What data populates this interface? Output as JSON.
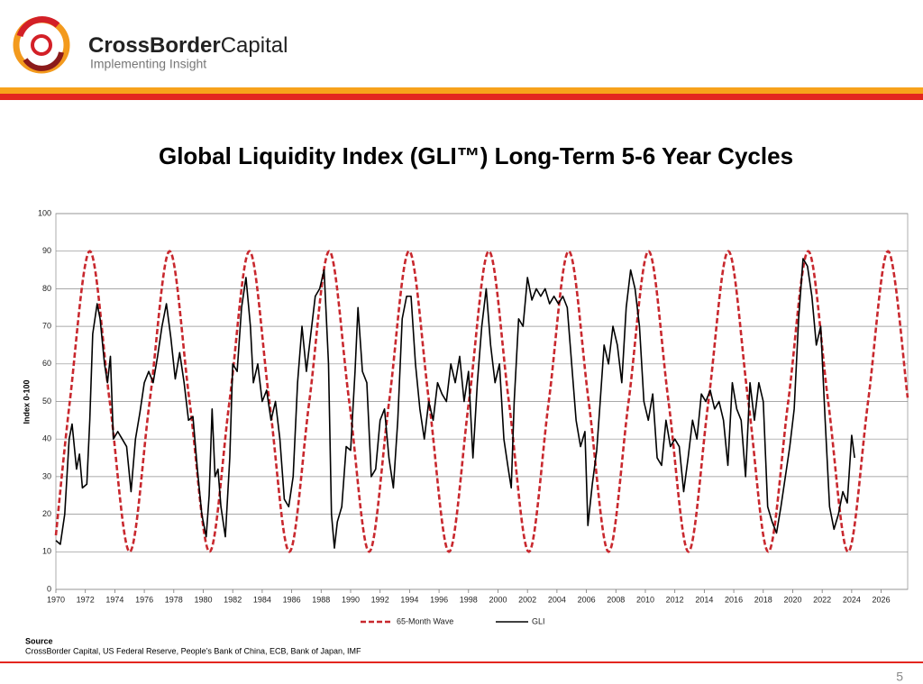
{
  "header": {
    "brand_bold": "CrossBorder",
    "brand_rest": "Capital",
    "tagline": "Implementing Insight"
  },
  "chart_data": {
    "type": "line",
    "title": "Global Liquidity Index (GLI™) Long-Term 5-6 Year Cycles",
    "ylabel": "Index 0-100",
    "xlim": [
      1970,
      2027.8
    ],
    "xticks": [
      1970,
      1972,
      1974,
      1976,
      1978,
      1980,
      1982,
      1984,
      1986,
      1988,
      1990,
      1992,
      1994,
      1996,
      1998,
      2000,
      2002,
      2004,
      2006,
      2008,
      2010,
      2012,
      2014,
      2016,
      2018,
      2020,
      2022,
      2024,
      2026
    ],
    "ylim": [
      0,
      100
    ],
    "yticks": [
      0,
      10,
      20,
      30,
      40,
      50,
      60,
      70,
      80,
      90,
      100
    ],
    "grid": true,
    "legend": "bottom",
    "series": [
      {
        "name": "65-Month Wave",
        "color": "#c8282e",
        "style": "dashed",
        "smooth": true,
        "x": [
          1970,
          1970.946,
          1972.3,
          1973.654,
          1975.008,
          1976.363,
          1977.717,
          1979.071,
          1980.425,
          1981.779,
          1983.133,
          1984.488,
          1985.842,
          1987.196,
          1988.55,
          1989.904,
          1991.258,
          1992.613,
          1993.967,
          1995.321,
          1996.675,
          1998.029,
          1999.383,
          2000.738,
          2002.092,
          2003.446,
          2004.8,
          2006.154,
          2007.508,
          2008.863,
          2010.217,
          2011.571,
          2012.925,
          2014.279,
          2015.633,
          2016.988,
          2018.342,
          2019.696,
          2021.05,
          2022.404,
          2023.758,
          2025.113,
          2026.467,
          2027.8
        ],
        "values": [
          14.4,
          50,
          90,
          50,
          10,
          50,
          90,
          50,
          10,
          50,
          90,
          50,
          10,
          50,
          90,
          50,
          10,
          50,
          90,
          50,
          10,
          50,
          90,
          50,
          10,
          50,
          90,
          50,
          10,
          50,
          90,
          50,
          10,
          50,
          90,
          50,
          10,
          50,
          90,
          50,
          10,
          50,
          90,
          51
        ]
      },
      {
        "name": "GLI",
        "color": "#000000",
        "style": "solid",
        "smooth": false,
        "x": [
          1970,
          1970.3,
          1970.6,
          1970.9,
          1971.1,
          1971.4,
          1971.6,
          1971.8,
          1972.1,
          1972.3,
          1972.5,
          1972.8,
          1973.0,
          1973.3,
          1973.5,
          1973.7,
          1973.9,
          1974.2,
          1974.5,
          1974.8,
          1975.1,
          1975.4,
          1975.7,
          1976.0,
          1976.3,
          1976.6,
          1976.9,
          1977.2,
          1977.5,
          1977.8,
          1978.1,
          1978.4,
          1978.7,
          1979.0,
          1979.3,
          1979.6,
          1979.9,
          1980.2,
          1980.4,
          1980.6,
          1980.8,
          1981.0,
          1981.2,
          1981.5,
          1981.8,
          1982.0,
          1982.3,
          1982.6,
          1982.9,
          1983.2,
          1983.4,
          1983.7,
          1984.0,
          1984.3,
          1984.6,
          1984.9,
          1985.2,
          1985.5,
          1985.8,
          1986.1,
          1986.4,
          1986.7,
          1987.0,
          1987.3,
          1987.6,
          1987.9,
          1988.2,
          1988.5,
          1988.7,
          1988.9,
          1989.1,
          1989.4,
          1989.7,
          1990.0,
          1990.3,
          1990.5,
          1990.8,
          1991.1,
          1991.4,
          1991.7,
          1992.0,
          1992.3,
          1992.6,
          1992.9,
          1993.2,
          1993.5,
          1993.8,
          1994.1,
          1994.4,
          1994.7,
          1995.0,
          1995.3,
          1995.6,
          1995.9,
          1996.2,
          1996.5,
          1996.8,
          1997.1,
          1997.4,
          1997.7,
          1998.0,
          1998.3,
          1998.6,
          1998.9,
          1999.2,
          1999.5,
          1999.8,
          2000.1,
          2000.4,
          2000.7,
          2000.9,
          2001.1,
          2001.4,
          2001.7,
          2002.0,
          2002.3,
          2002.6,
          2002.9,
          2003.2,
          2003.5,
          2003.8,
          2004.1,
          2004.4,
          2004.7,
          2005.0,
          2005.3,
          2005.6,
          2005.9,
          2006.1,
          2006.4,
          2006.7,
          2006.9,
          2007.2,
          2007.5,
          2007.8,
          2008.1,
          2008.4,
          2008.7,
          2009.0,
          2009.3,
          2009.6,
          2009.9,
          2010.2,
          2010.5,
          2010.8,
          2011.1,
          2011.4,
          2011.7,
          2012.0,
          2012.3,
          2012.6,
          2012.9,
          2013.2,
          2013.5,
          2013.8,
          2014.1,
          2014.4,
          2014.7,
          2015.0,
          2015.3,
          2015.6,
          2015.9,
          2016.2,
          2016.5,
          2016.8,
          2017.1,
          2017.4,
          2017.7,
          2018.0,
          2018.3,
          2018.6,
          2018.9,
          2019.2,
          2019.5,
          2019.8,
          2020.1,
          2020.4,
          2020.7,
          2021.0,
          2021.3,
          2021.6,
          2021.9,
          2022.2,
          2022.5,
          2022.8,
          2023.1,
          2023.4,
          2023.7,
          2024.0,
          2024.2
        ],
        "values": [
          13,
          12,
          20,
          40,
          44,
          32,
          36,
          27,
          28,
          45,
          68,
          76,
          72,
          60,
          55,
          62,
          40,
          42,
          40,
          38,
          26,
          40,
          47,
          55,
          58,
          55,
          62,
          70,
          76,
          67,
          56,
          63,
          55,
          45,
          46,
          32,
          20,
          14,
          25,
          48,
          30,
          32,
          22,
          14,
          35,
          60,
          58,
          75,
          83,
          70,
          55,
          60,
          50,
          53,
          45,
          50,
          40,
          24,
          22,
          30,
          55,
          70,
          58,
          68,
          78,
          80,
          85,
          60,
          20,
          11,
          18,
          22,
          38,
          37,
          58,
          75,
          58,
          55,
          30,
          32,
          45,
          48,
          35,
          27,
          45,
          72,
          78,
          78,
          60,
          48,
          40,
          50,
          45,
          55,
          52,
          50,
          60,
          55,
          62,
          50,
          58,
          35,
          55,
          70,
          80,
          65,
          55,
          60,
          40,
          32,
          27,
          50,
          72,
          70,
          83,
          77,
          80,
          78,
          80,
          76,
          78,
          76,
          78,
          75,
          60,
          45,
          38,
          42,
          17,
          28,
          37,
          48,
          65,
          60,
          70,
          65,
          55,
          75,
          85,
          80,
          70,
          50,
          45,
          52,
          35,
          33,
          45,
          38,
          40,
          38,
          26,
          35,
          45,
          40,
          52,
          50,
          53,
          48,
          50,
          45,
          33,
          55,
          48,
          45,
          30,
          55,
          45,
          55,
          50,
          22,
          18,
          15,
          22,
          30,
          38,
          48,
          72,
          88,
          86,
          78,
          65,
          70,
          45,
          22,
          16,
          20,
          26,
          23,
          41,
          35
        ]
      }
    ]
  },
  "source": {
    "heading": "Source",
    "text": "CrossBorder Capital, US Federal Reserve, People’s Bank of China, ECB, Bank of Japan, IMF"
  },
  "footer": {
    "page_number": 5
  }
}
